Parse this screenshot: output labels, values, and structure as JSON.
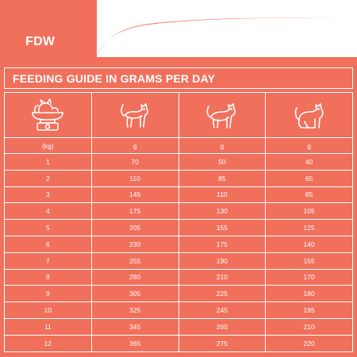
{
  "brand": "FDW",
  "title": "FEEDING GUIDE IN GRAMS PER DAY",
  "colors": {
    "background": "#f0705c",
    "text": "#ffffff",
    "page": "#ffffff"
  },
  "icons": [
    "scale-cat-icon",
    "slim-cat-icon",
    "standing-cat-icon",
    "sitting-cat-icon"
  ],
  "header": [
    "(kg)",
    "g",
    "g",
    "g"
  ],
  "rows": [
    [
      "1",
      "70",
      "50",
      "40"
    ],
    [
      "2",
      "110",
      "85",
      "65"
    ],
    [
      "3",
      "145",
      "110",
      "85"
    ],
    [
      "4",
      "175",
      "130",
      "105"
    ],
    [
      "5",
      "205",
      "155",
      "125"
    ],
    [
      "6",
      "230",
      "175",
      "140"
    ],
    [
      "7",
      "255",
      "190",
      "155"
    ],
    [
      "8",
      "280",
      "210",
      "170"
    ],
    [
      "9",
      "305",
      "225",
      "180"
    ],
    [
      "10",
      "325",
      "245",
      "195"
    ],
    [
      "11",
      "345",
      "260",
      "210"
    ],
    [
      "12",
      "365",
      "275",
      "220"
    ]
  ]
}
